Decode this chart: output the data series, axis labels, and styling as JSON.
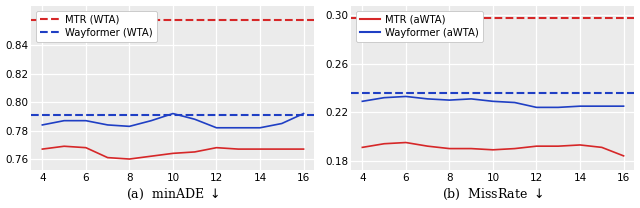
{
  "x": [
    4,
    5,
    6,
    7,
    8,
    9,
    10,
    11,
    12,
    13,
    14,
    15,
    16
  ],
  "panel_a": {
    "title": "(a)  minADE $\\downarrow$",
    "mtr_wta_baseline": 0.858,
    "wayformer_wta_baseline": 0.791,
    "mtr_awta": [
      0.767,
      0.769,
      0.768,
      0.761,
      0.76,
      0.762,
      0.764,
      0.765,
      0.768,
      0.767,
      0.767,
      0.767,
      0.767
    ],
    "wayformer_awta": [
      0.784,
      0.787,
      0.787,
      0.784,
      0.783,
      0.787,
      0.792,
      0.788,
      0.782,
      0.782,
      0.782,
      0.785,
      0.792
    ],
    "ylim": [
      0.752,
      0.868
    ],
    "yticks": [
      0.76,
      0.78,
      0.8,
      0.82,
      0.84
    ],
    "legend_labels": [
      "MTR (WTA)",
      "Wayformer (WTA)"
    ],
    "legend_linestyle": "--"
  },
  "panel_b": {
    "title": "(b)  MissRate $\\downarrow$",
    "mtr_wta_baseline": 0.298,
    "wayformer_wta_baseline": 0.236,
    "mtr_awta": [
      0.191,
      0.194,
      0.195,
      0.192,
      0.19,
      0.19,
      0.189,
      0.19,
      0.192,
      0.192,
      0.193,
      0.191,
      0.184
    ],
    "wayformer_awta": [
      0.229,
      0.232,
      0.233,
      0.231,
      0.23,
      0.231,
      0.229,
      0.228,
      0.224,
      0.224,
      0.225,
      0.225,
      0.225
    ],
    "ylim": [
      0.172,
      0.308
    ],
    "yticks": [
      0.18,
      0.22,
      0.26,
      0.3
    ],
    "legend_labels": [
      "MTR (aWTA)",
      "Wayformer (aWTA)"
    ],
    "legend_linestyle": "-"
  },
  "red_color": "#d62728",
  "blue_color": "#1f3fc4",
  "bg_color": "#ebebeb",
  "grid_color": "white",
  "xticks": [
    4,
    6,
    8,
    10,
    12,
    14,
    16
  ],
  "xlim": [
    3.5,
    16.5
  ]
}
